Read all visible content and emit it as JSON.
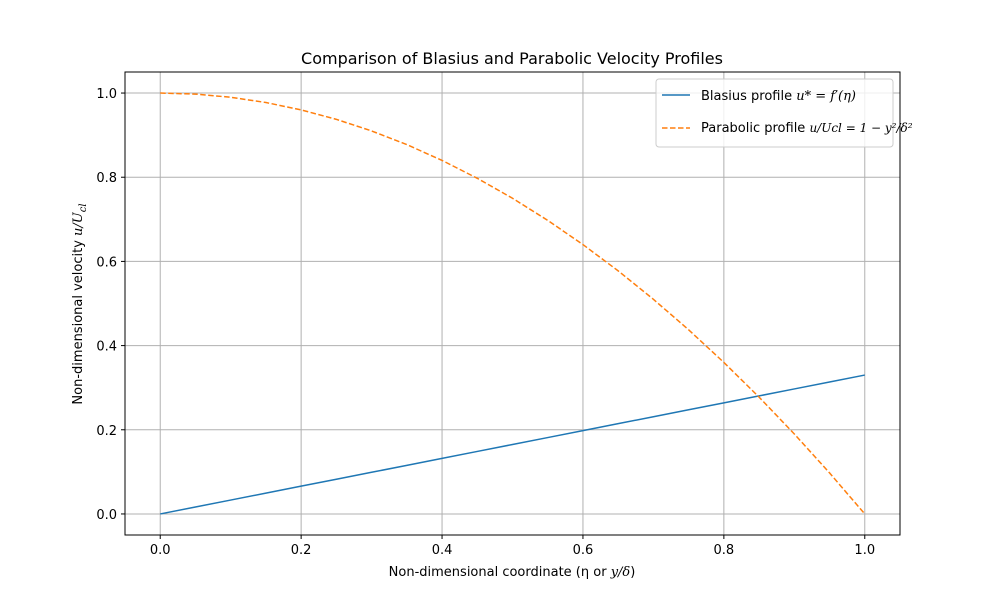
{
  "chart_data": {
    "type": "line",
    "title": "Comparison of Blasius and Parabolic Velocity Profiles",
    "xlabel": "Non-dimensional coordinate (η or y/δ)",
    "xlabel_parts": {
      "prefix": "Non-dimensional coordinate (η or ",
      "var": "y/δ",
      "suffix": ")"
    },
    "ylabel": "Non-dimensional velocity u/U_cl",
    "ylabel_parts": {
      "prefix": "Non-dimensional velocity ",
      "var": "u/U",
      "sub": "cl"
    },
    "xlim": [
      -0.05,
      1.05
    ],
    "ylim": [
      -0.05,
      1.05
    ],
    "xticks": [
      0.0,
      0.2,
      0.4,
      0.6,
      0.8,
      1.0
    ],
    "yticks": [
      0.0,
      0.2,
      0.4,
      0.6,
      0.8,
      1.0
    ],
    "xtick_labels": [
      "0.0",
      "0.2",
      "0.4",
      "0.6",
      "0.8",
      "1.0"
    ],
    "ytick_labels": [
      "0.0",
      "0.2",
      "0.4",
      "0.6",
      "0.8",
      "1.0"
    ],
    "grid": true,
    "legend_position": "top-right",
    "x": [
      0.0,
      0.05,
      0.1,
      0.15,
      0.2,
      0.25,
      0.3,
      0.35,
      0.4,
      0.45,
      0.5,
      0.55,
      0.6,
      0.65,
      0.7,
      0.75,
      0.8,
      0.85,
      0.9,
      0.95,
      1.0
    ],
    "series": [
      {
        "name": "Blasius profile u* = f′(η)",
        "legend_parts": {
          "prefix": "Blasius profile ",
          "formula": "u* = f′(η)"
        },
        "color": "#1f77b4",
        "style": "solid",
        "values": [
          0.0,
          0.0165,
          0.033,
          0.0495,
          0.066,
          0.0825,
          0.099,
          0.1155,
          0.132,
          0.1485,
          0.165,
          0.1815,
          0.198,
          0.2145,
          0.231,
          0.2475,
          0.264,
          0.2805,
          0.297,
          0.3135,
          0.33
        ]
      },
      {
        "name": "Parabolic profile u/U_cl = 1 − y²/δ²",
        "legend_parts": {
          "prefix": "Parabolic profile ",
          "formula": "u/Ucl = 1 − y²/δ²"
        },
        "color": "#ff7f0e",
        "style": "dashed",
        "values": [
          1.0,
          0.9975,
          0.99,
          0.9775,
          0.96,
          0.9375,
          0.91,
          0.8775,
          0.84,
          0.7975,
          0.75,
          0.6975,
          0.64,
          0.5775,
          0.51,
          0.4375,
          0.36,
          0.2775,
          0.19,
          0.0975,
          0.0
        ]
      }
    ]
  }
}
